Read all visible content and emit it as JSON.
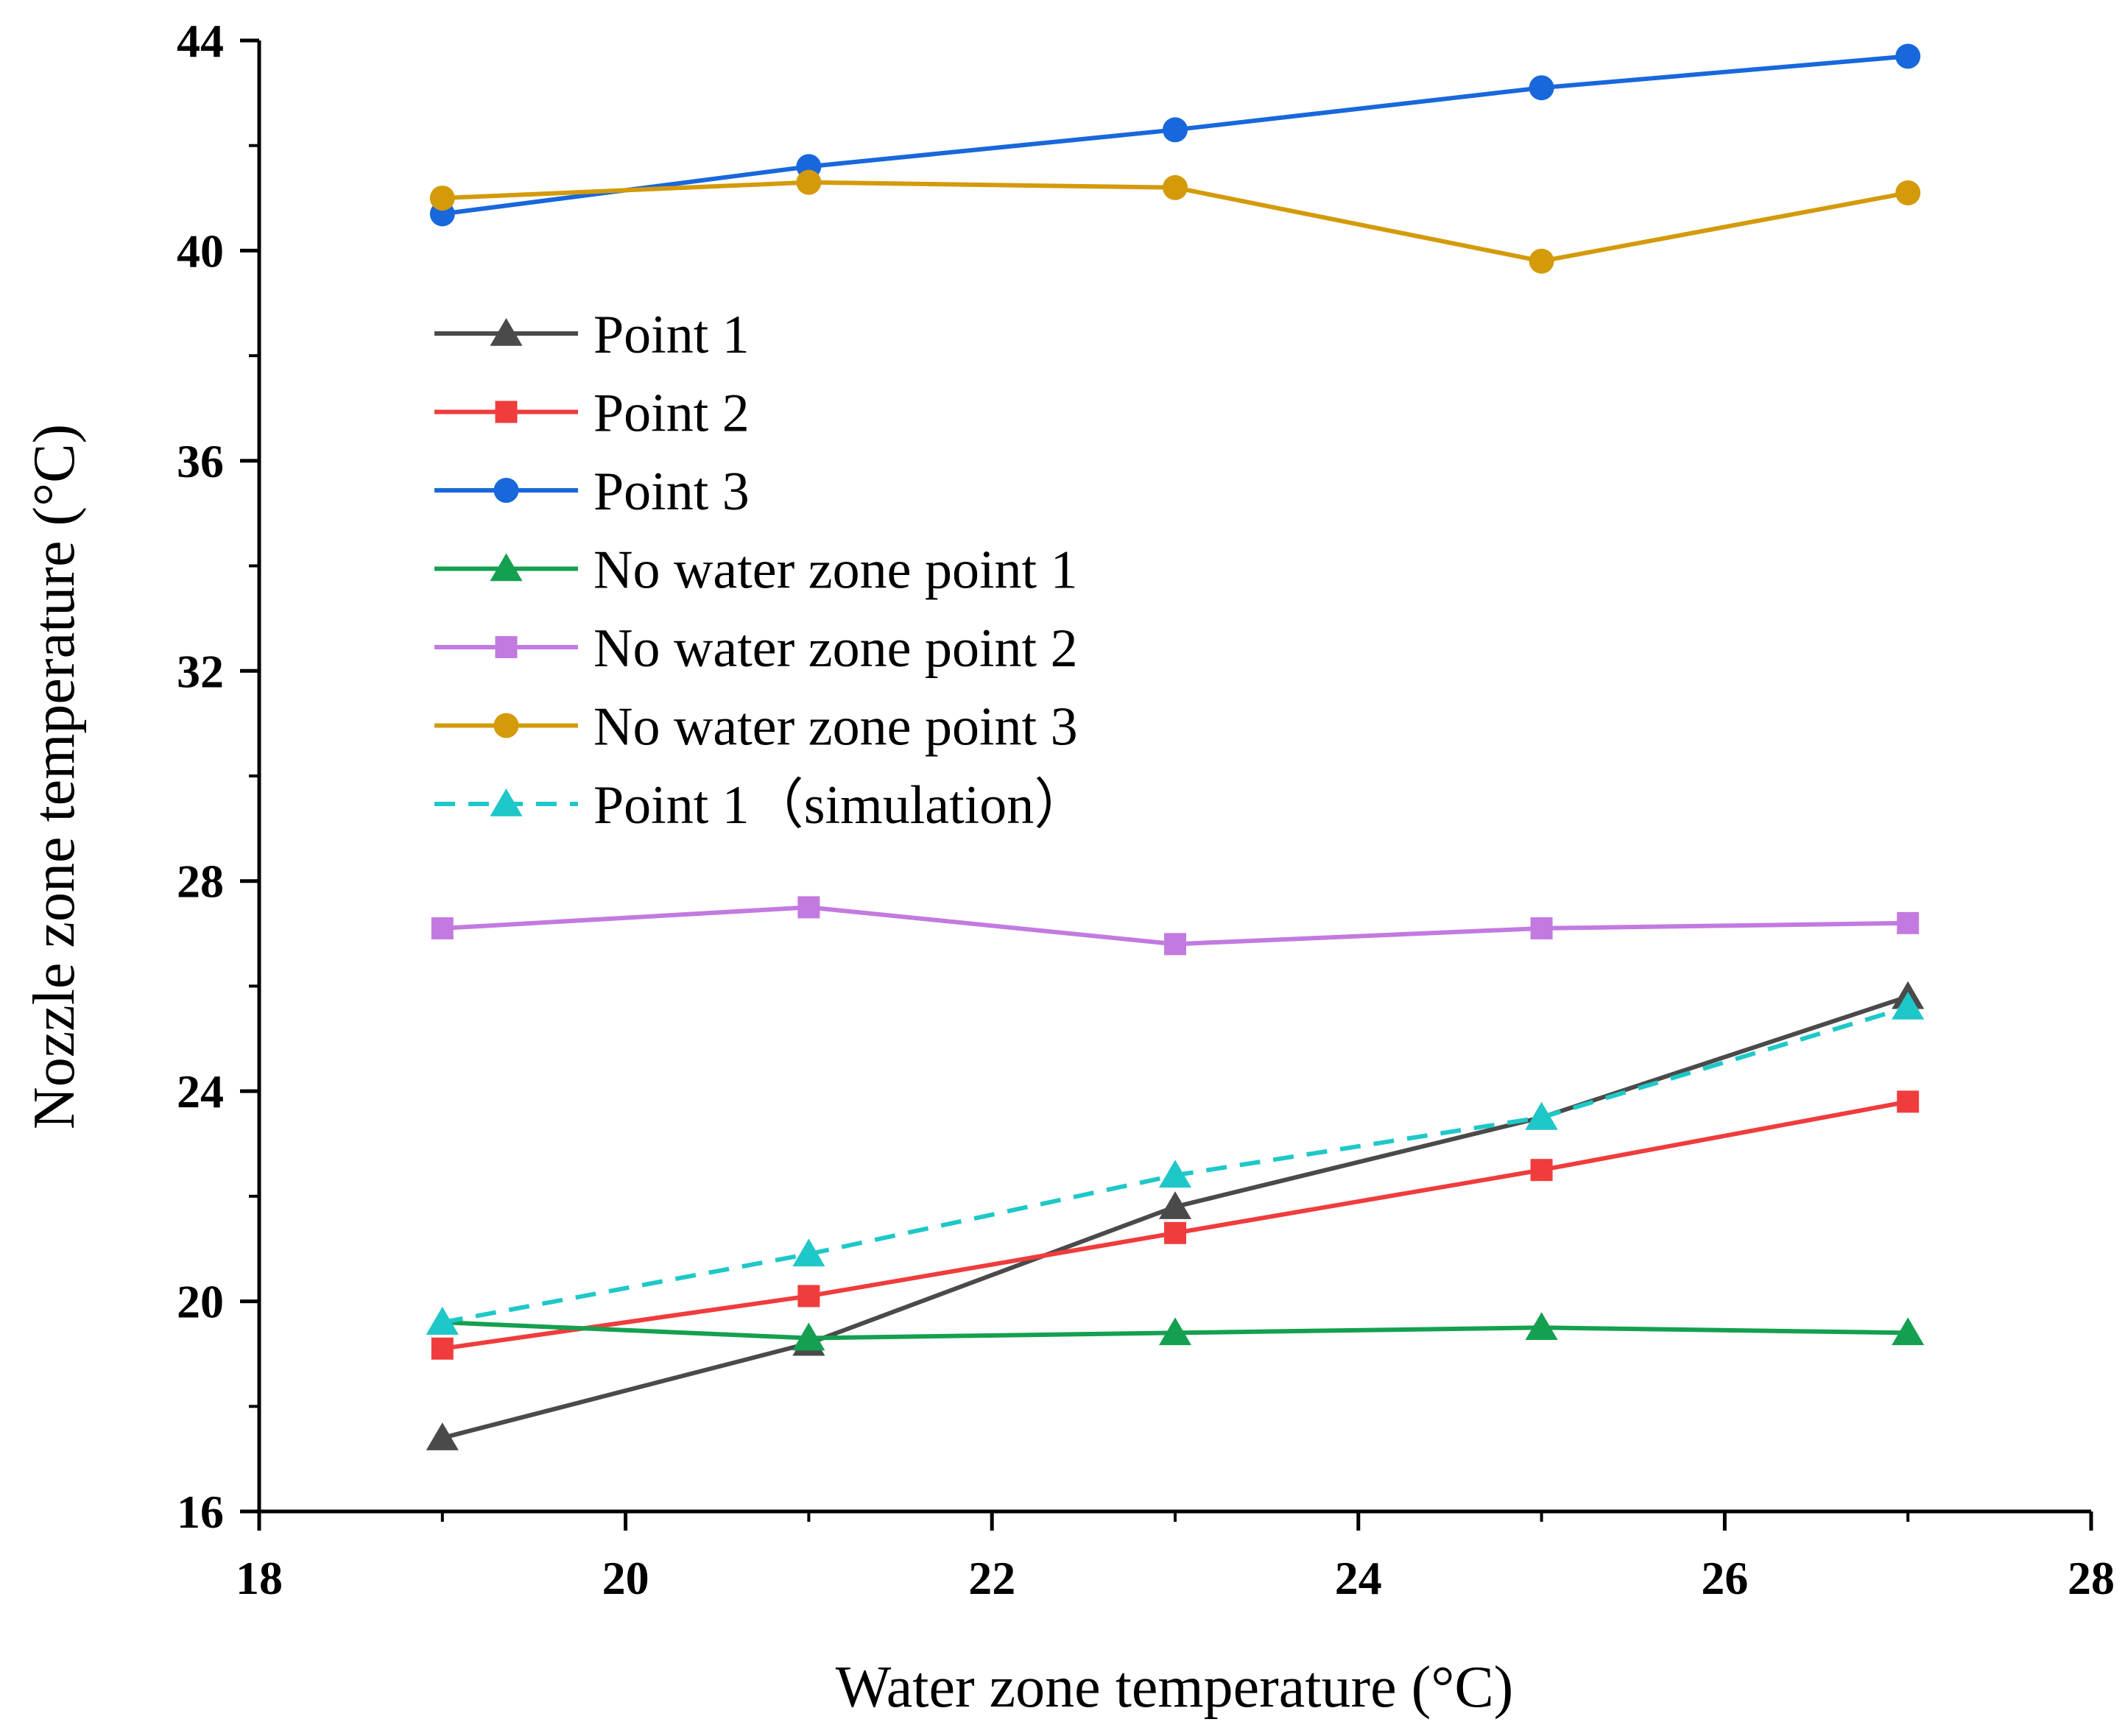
{
  "chart_data": {
    "type": "line",
    "title": "",
    "xlabel": "Water zone temperature (°C)",
    "ylabel": "Nozzle zone temperature (°C)",
    "xlim": [
      18,
      28
    ],
    "ylim": [
      16,
      44
    ],
    "x_ticks": [
      "18",
      "20",
      "22",
      "24",
      "26",
      "28"
    ],
    "y_ticks": [
      "16",
      "20",
      "24",
      "28",
      "32",
      "36",
      "40",
      "44"
    ],
    "grid": false,
    "legend_position": "upper-left",
    "x": [
      19,
      21,
      23,
      25,
      27
    ],
    "series": [
      {
        "name": "Point 1",
        "values": [
          17.4,
          19.2,
          21.8,
          23.5,
          25.8
        ],
        "color": "#4a4a4a",
        "marker": "triangle",
        "dash": "solid"
      },
      {
        "name": "Point 2",
        "values": [
          19.1,
          20.1,
          21.3,
          22.5,
          23.8
        ],
        "color": "#f03c3c",
        "marker": "square",
        "dash": "solid"
      },
      {
        "name": "Point 3",
        "values": [
          40.7,
          41.6,
          42.3,
          43.1,
          43.7
        ],
        "color": "#1868dc",
        "marker": "circle",
        "dash": "solid"
      },
      {
        "name": "No water zone point 1",
        "values": [
          19.6,
          19.3,
          19.4,
          19.5,
          19.4
        ],
        "color": "#14a050",
        "marker": "triangle",
        "dash": "solid"
      },
      {
        "name": "No water zone point 2",
        "values": [
          27.1,
          27.5,
          26.8,
          27.1,
          27.2
        ],
        "color": "#c27ae0",
        "marker": "square",
        "dash": "solid"
      },
      {
        "name": "No water zone point 3",
        "values": [
          41.0,
          41.3,
          41.2,
          39.8,
          41.1
        ],
        "color": "#d49a0a",
        "marker": "circle",
        "dash": "solid"
      },
      {
        "name": "Point 1（simulation）",
        "values": [
          19.6,
          20.9,
          22.4,
          23.5,
          25.6
        ],
        "color": "#1ec8c8",
        "marker": "triangle",
        "dash": "dashed"
      }
    ]
  }
}
